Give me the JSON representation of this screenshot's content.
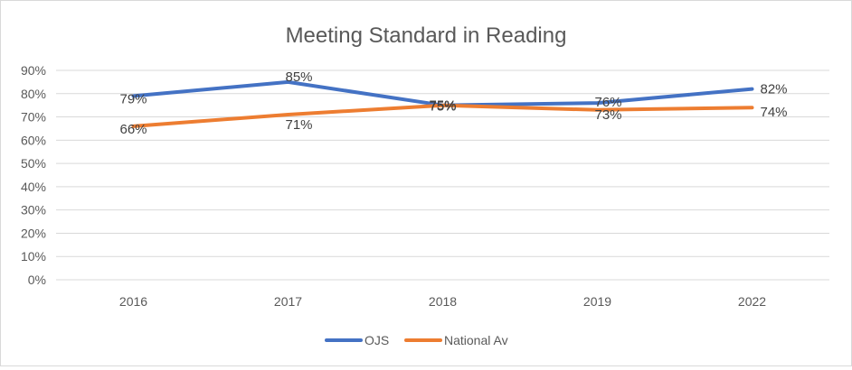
{
  "chart_data": {
    "type": "line",
    "title": "Meeting Standard in Reading",
    "categories": [
      "2016",
      "2017",
      "2018",
      "2019",
      "2022"
    ],
    "series": [
      {
        "name": "OJS",
        "color": "#4472C4",
        "values": [
          79,
          85,
          75,
          76,
          82
        ],
        "labels": [
          "79%",
          "85%",
          "75%",
          "76%",
          "82%"
        ]
      },
      {
        "name": "National Av",
        "color": "#ED7D31",
        "values": [
          66,
          71,
          75,
          73,
          74
        ],
        "labels": [
          "66%",
          "71%",
          "75%",
          "73%",
          "74%"
        ]
      }
    ],
    "ylim": [
      0,
      90
    ],
    "yticks": [
      0,
      10,
      20,
      30,
      40,
      50,
      60,
      70,
      80,
      90
    ],
    "ytick_labels": [
      "0%",
      "10%",
      "20%",
      "30%",
      "40%",
      "50%",
      "60%",
      "70%",
      "80%",
      "90%"
    ],
    "xlabel": "",
    "ylabel": "",
    "grid": true,
    "legend_position": "bottom",
    "gridline_color": "#d9d9d9",
    "text_color": "#595959"
  }
}
